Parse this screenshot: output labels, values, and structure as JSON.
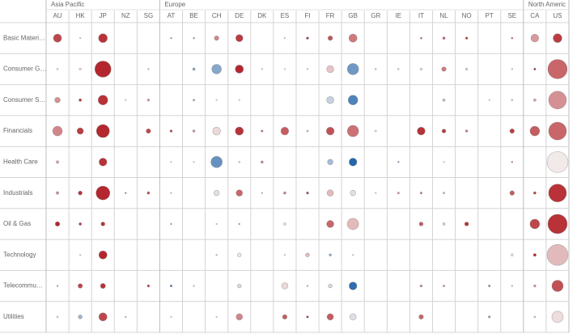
{
  "chart_data": {
    "type": "bubble_matrix",
    "regions": [
      {
        "name": "Asia Pacific",
        "countries": [
          "AU",
          "HK",
          "JP",
          "NZ",
          "SG"
        ]
      },
      {
        "name": "Europe",
        "countries": [
          "AT",
          "BE",
          "CH",
          "DE",
          "DK",
          "ES",
          "FI",
          "FR",
          "GB",
          "GR",
          "IE",
          "IT",
          "NL",
          "NO",
          "PT",
          "SE"
        ]
      },
      {
        "name": "North Americ",
        "countries": [
          "CA",
          "US"
        ]
      }
    ],
    "color_scale": [
      "#1a5fa8",
      "#f3eeed",
      "#b11d24"
    ],
    "rows": [
      {
        "name": "Basic Materi…",
        "cells": [
          [
            13,
            0.8
          ],
          [
            0.3,
            0.1
          ],
          [
            15,
            0.9
          ],
          null,
          null,
          [
            0.4,
            0.6
          ],
          [
            0.6,
            -0.3
          ],
          [
            4,
            0.5
          ],
          [
            10,
            0.85
          ],
          null,
          [
            0.3,
            0.1
          ],
          [
            1,
            0.95
          ],
          [
            4,
            0.75
          ],
          [
            13,
            0.55
          ],
          null,
          null,
          [
            0.6,
            0.7
          ],
          [
            1.2,
            0.7
          ],
          [
            1,
            0.9
          ],
          null,
          [
            0.6,
            0.6
          ],
          [
            12,
            0.4
          ],
          [
            15,
            0.85
          ]
        ]
      },
      {
        "name": "Consumer G…",
        "cells": [
          [
            0.5,
            0.05
          ],
          [
            0.8,
            0.05
          ],
          [
            51,
            0.95
          ],
          null,
          [
            0.4,
            0.2
          ],
          null,
          [
            1.2,
            -0.5
          ],
          [
            18,
            -0.5
          ],
          [
            13,
            0.95
          ],
          [
            0.4,
            0.05
          ],
          [
            0.3,
            0.05
          ],
          [
            0.4,
            0.1
          ],
          [
            10,
            0.2
          ],
          [
            25,
            -0.6
          ],
          [
            0.4,
            -0.3
          ],
          [
            0.4,
            -0.3
          ],
          [
            0.8,
            0.1
          ],
          [
            4,
            0.55
          ],
          [
            0.8,
            -0.2
          ],
          null,
          [
            0.4,
            0.1
          ],
          [
            0.8,
            0.9
          ],
          [
            73,
            0.65
          ]
        ]
      },
      {
        "name": "Consumer S…",
        "cells": [
          [
            6,
            0.45
          ],
          [
            1.3,
            0.9
          ],
          [
            18,
            0.9
          ],
          [
            0.2,
            0.05
          ],
          [
            1,
            0.4
          ],
          null,
          [
            0.8,
            -0.4
          ],
          [
            0.3,
            0.05
          ],
          [
            0.3,
            0.05
          ],
          null,
          null,
          null,
          [
            10,
            -0.2
          ],
          [
            18,
            -0.75
          ],
          null,
          null,
          null,
          [
            1.2,
            -0.3
          ],
          null,
          [
            0.3,
            0.05
          ],
          [
            0.6,
            0.1
          ],
          [
            1.3,
            0.35
          ],
          [
            62,
            0.45
          ]
        ]
      },
      {
        "name": "Financials",
        "cells": [
          [
            18,
            0.5
          ],
          [
            8,
            0.85
          ],
          [
            33,
            0.95
          ],
          null,
          [
            4,
            0.8
          ],
          [
            1,
            0.9
          ],
          [
            1,
            0.5
          ],
          [
            12,
            0.1
          ],
          [
            13,
            0.9
          ],
          [
            0.8,
            0.6
          ],
          [
            12,
            0.7
          ],
          [
            0.6,
            0.3
          ],
          [
            12,
            0.75
          ],
          [
            25,
            0.6
          ],
          [
            0.6,
            0.05
          ],
          null,
          [
            12,
            0.9
          ],
          [
            3,
            0.85
          ],
          [
            1,
            0.6
          ],
          null,
          [
            4,
            0.85
          ],
          [
            18,
            0.7
          ],
          [
            62,
            0.65
          ]
        ]
      },
      {
        "name": "Health Care",
        "cells": [
          [
            1.5,
            0.35
          ],
          null,
          [
            12,
            0.9
          ],
          null,
          null,
          [
            0.3,
            0.05
          ],
          [
            0.3,
            0.05
          ],
          [
            25,
            -0.65
          ],
          [
            0.5,
            0.05
          ],
          [
            1.2,
            0.5
          ],
          null,
          null,
          [
            6,
            -0.35
          ],
          [
            12,
            -0.95
          ],
          null,
          [
            0.4,
            -0.7
          ],
          null,
          [
            0.3,
            0.05
          ],
          null,
          null,
          [
            0.4,
            0.7
          ],
          null,
          [
            86,
            0.02
          ]
        ]
      },
      {
        "name": "Industrials",
        "cells": [
          [
            1.5,
            0.45
          ],
          [
            3,
            0.9
          ],
          [
            37,
            0.95
          ],
          [
            0.4,
            0.7
          ],
          [
            1.3,
            0.75
          ],
          [
            0.3,
            0.2
          ],
          null,
          [
            6,
            -0.1
          ],
          [
            8,
            0.65
          ],
          [
            0.4,
            0.3
          ],
          [
            1.3,
            0.5
          ],
          [
            1,
            0.85
          ],
          [
            8,
            0.25
          ],
          [
            6,
            -0.1
          ],
          [
            0.3,
            0.05
          ],
          [
            0.8,
            0.4
          ],
          [
            0.8,
            0.6
          ],
          [
            0.7,
            -0.3
          ],
          null,
          null,
          [
            4,
            0.7
          ],
          [
            1.3,
            0.8
          ],
          [
            62,
            0.9
          ]
        ]
      },
      {
        "name": "Oil & Gas",
        "cells": [
          [
            4,
            0.95
          ],
          [
            1.3,
            0.85
          ],
          [
            3,
            0.9
          ],
          null,
          null,
          [
            0.4,
            -0.6
          ],
          null,
          [
            0.3,
            0.05
          ],
          [
            0.4,
            0.5
          ],
          null,
          [
            1,
            -0.1
          ],
          null,
          [
            10,
            0.65
          ],
          [
            25,
            0.25
          ],
          null,
          null,
          [
            3,
            0.7
          ],
          [
            1,
            0.2
          ],
          [
            3,
            0.9
          ],
          null,
          null,
          [
            18,
            0.8
          ],
          [
            73,
            0.9
          ]
        ]
      },
      {
        "name": "Technology",
        "cells": [
          null,
          [
            0.3,
            0.1
          ],
          [
            13,
            0.95
          ],
          null,
          null,
          null,
          null,
          [
            0.4,
            -0.3
          ],
          [
            3,
            0.05
          ],
          null,
          [
            0.3,
            0.05
          ],
          [
            3,
            0.25
          ],
          [
            1,
            -0.5
          ],
          [
            0.4,
            0.05
          ],
          null,
          null,
          null,
          null,
          null,
          null,
          [
            1,
            0.05
          ],
          [
            1.5,
            0.95
          ],
          [
            86,
            0.25
          ]
        ]
      },
      {
        "name": "Telecommu…",
        "cells": [
          [
            0.4,
            0.5
          ],
          [
            4,
            0.8
          ],
          [
            5,
            0.9
          ],
          null,
          [
            1,
            0.9
          ],
          [
            0.8,
            -0.8
          ],
          [
            0.4,
            0.2
          ],
          null,
          [
            3,
            -0.15
          ],
          null,
          [
            8,
            0.1
          ],
          [
            0.4,
            0.3
          ],
          [
            3,
            -0.15
          ],
          [
            12,
            -0.9
          ],
          null,
          null,
          [
            1,
            0.5
          ],
          [
            0.7,
            0.5
          ],
          null,
          [
            0.8,
            -0.6
          ],
          [
            0.4,
            -0.3
          ],
          [
            1,
            0.45
          ],
          [
            25,
            0.75
          ]
        ]
      },
      {
        "name": "Utilities",
        "cells": [
          [
            0.5,
            0.1
          ],
          [
            3,
            -0.4
          ],
          [
            13,
            0.8
          ],
          [
            0.3,
            -0.4
          ],
          null,
          [
            0.3,
            0.05
          ],
          null,
          [
            0.2,
            0.05
          ],
          [
            8,
            0.5
          ],
          null,
          [
            4,
            0.7
          ],
          [
            0.8,
            0.9
          ],
          [
            8,
            0.7
          ],
          [
            8,
            -0.1
          ],
          null,
          null,
          [
            4,
            0.65
          ],
          null,
          null,
          [
            0.8,
            -0.6
          ],
          null,
          [
            0.5,
            0.2
          ],
          [
            25,
            0.08
          ]
        ]
      }
    ]
  }
}
